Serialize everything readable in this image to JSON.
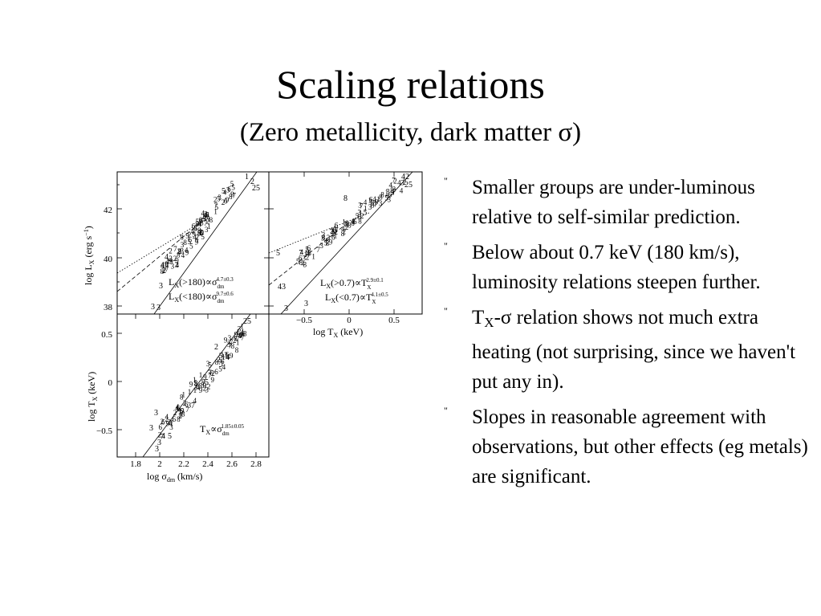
{
  "slide": {
    "title": "Scaling relations",
    "subtitle": "(Zero metallicity, dark matter σ)"
  },
  "bullets": {
    "marker": "\"",
    "items": [
      {
        "text": "Smaller groups are under-luminous relative to self-similar prediction."
      },
      {
        "text": "Below about 0.7 keV (180 km/s), luminosity relations steepen further."
      },
      {
        "prefix": "T",
        "sub": "X",
        "text": "-σ relation shows not much extra heating (not surprising, since we haven't put any in)."
      },
      {
        "text": "Slopes in reasonable agreement with observations, but other effects (eg metals) are significant."
      }
    ]
  },
  "figure": {
    "panels": {
      "lx_sigma": {
        "ylabel": "log L",
        "ylabel_sub": "X",
        "ylabel_tail": " (erg s",
        "ylabel_sup": "−1",
        "ylabel_end": ")",
        "yticks": [
          "42",
          "40",
          "38"
        ],
        "legend_1": {
          "main": "L",
          "sub": "X",
          "mid": "(>180)∝σ",
          "dm": "dm",
          "exp": "4.7±0.3"
        },
        "legend_2": {
          "main": "L",
          "sub": "X",
          "mid": "(<180)∝σ",
          "dm": "dm",
          "exp": "9.7±0.6"
        },
        "labels": [
          "1",
          "2",
          "25",
          "5",
          "3",
          "4",
          "3",
          "3",
          "4"
        ]
      },
      "lx_tx": {
        "xlabel": "log T",
        "xlabel_sub": "X",
        "xlabel_tail": " (keV)",
        "xticks": [
          "−0.5",
          "0",
          "0.5"
        ],
        "legend_1": {
          "main": "L",
          "sub": "X",
          "mid": "(>0.7)∝T",
          "tsub": "X",
          "exp": "2.9±0.1"
        },
        "legend_2": {
          "main": "L",
          "sub": "X",
          "mid": "(<0.7)∝T",
          "tsub": "X",
          "exp": "4.1±0.5"
        },
        "labels": [
          "42",
          "25",
          "8",
          "6",
          "5",
          "43",
          "3",
          "3"
        ]
      },
      "tx_sigma": {
        "ylabel": "log T",
        "ylabel_sub": "X",
        "ylabel_tail": " (keV)",
        "yticks": [
          "0.5",
          "0",
          "−0.5"
        ],
        "xlabel": "log σ",
        "xlabel_sub": "dm",
        "xlabel_tail": " (km/s)",
        "xticks": [
          "1.8",
          "2",
          "2.2",
          "2.4",
          "2.6",
          "2.8"
        ],
        "legend": {
          "main": "T",
          "sub": "X",
          "mid": "∝σ",
          "dm": "dm",
          "exp": "1.85±0.05"
        },
        "labels": [
          "25",
          "14",
          "2",
          "14",
          "5",
          "7",
          "3",
          "3",
          "4",
          "5",
          "3",
          "3"
        ]
      }
    }
  }
}
